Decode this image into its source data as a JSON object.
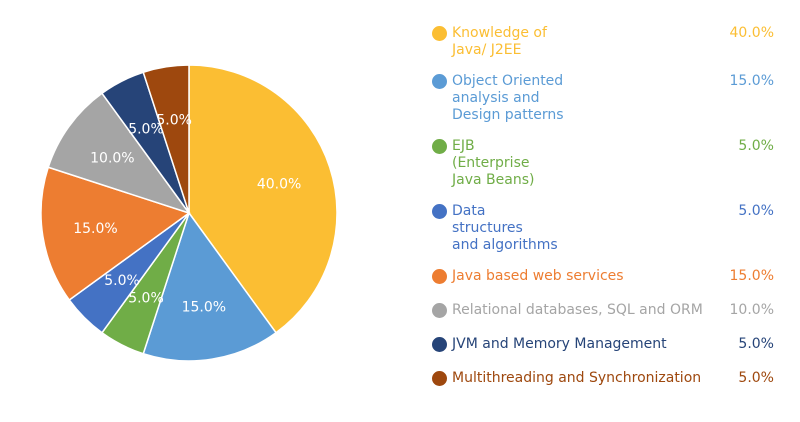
{
  "chart_data": {
    "type": "pie",
    "start": "top",
    "direction": "clockwise",
    "legend_position": "right",
    "slices": [
      {
        "name": "Knowledge of\n Java/ J2EE",
        "value": 40.0,
        "label": "40.0%",
        "color": "#fbbe33"
      },
      {
        "name": "Object Oriented\nanalysis and\nDesign patterns",
        "value": 15.0,
        "label": "15.0%",
        "color": "#5b9bd5"
      },
      {
        "name": "EJB\n(Enterprise\nJava Beans)",
        "value": 5.0,
        "label": "5.0%",
        "color": "#70ad47"
      },
      {
        "name": "Data\nstructures\nand algorithms",
        "value": 5.0,
        "label": "5.0%",
        "color": "#4472c4"
      },
      {
        "name": "Java based web services",
        "value": 15.0,
        "label": "15.0%",
        "color": "#ed7d31"
      },
      {
        "name": "Relational databases, SQL and ORM",
        "value": 10.0,
        "label": "10.0%",
        "color": "#a5a5a5"
      },
      {
        "name": "JVM and Memory Management",
        "value": 5.0,
        "label": "5.0%",
        "color": "#264478"
      },
      {
        "name": "Multithreading and Synchronization",
        "value": 5.0,
        "label": "5.0%",
        "color": "#9e480e"
      }
    ]
  }
}
